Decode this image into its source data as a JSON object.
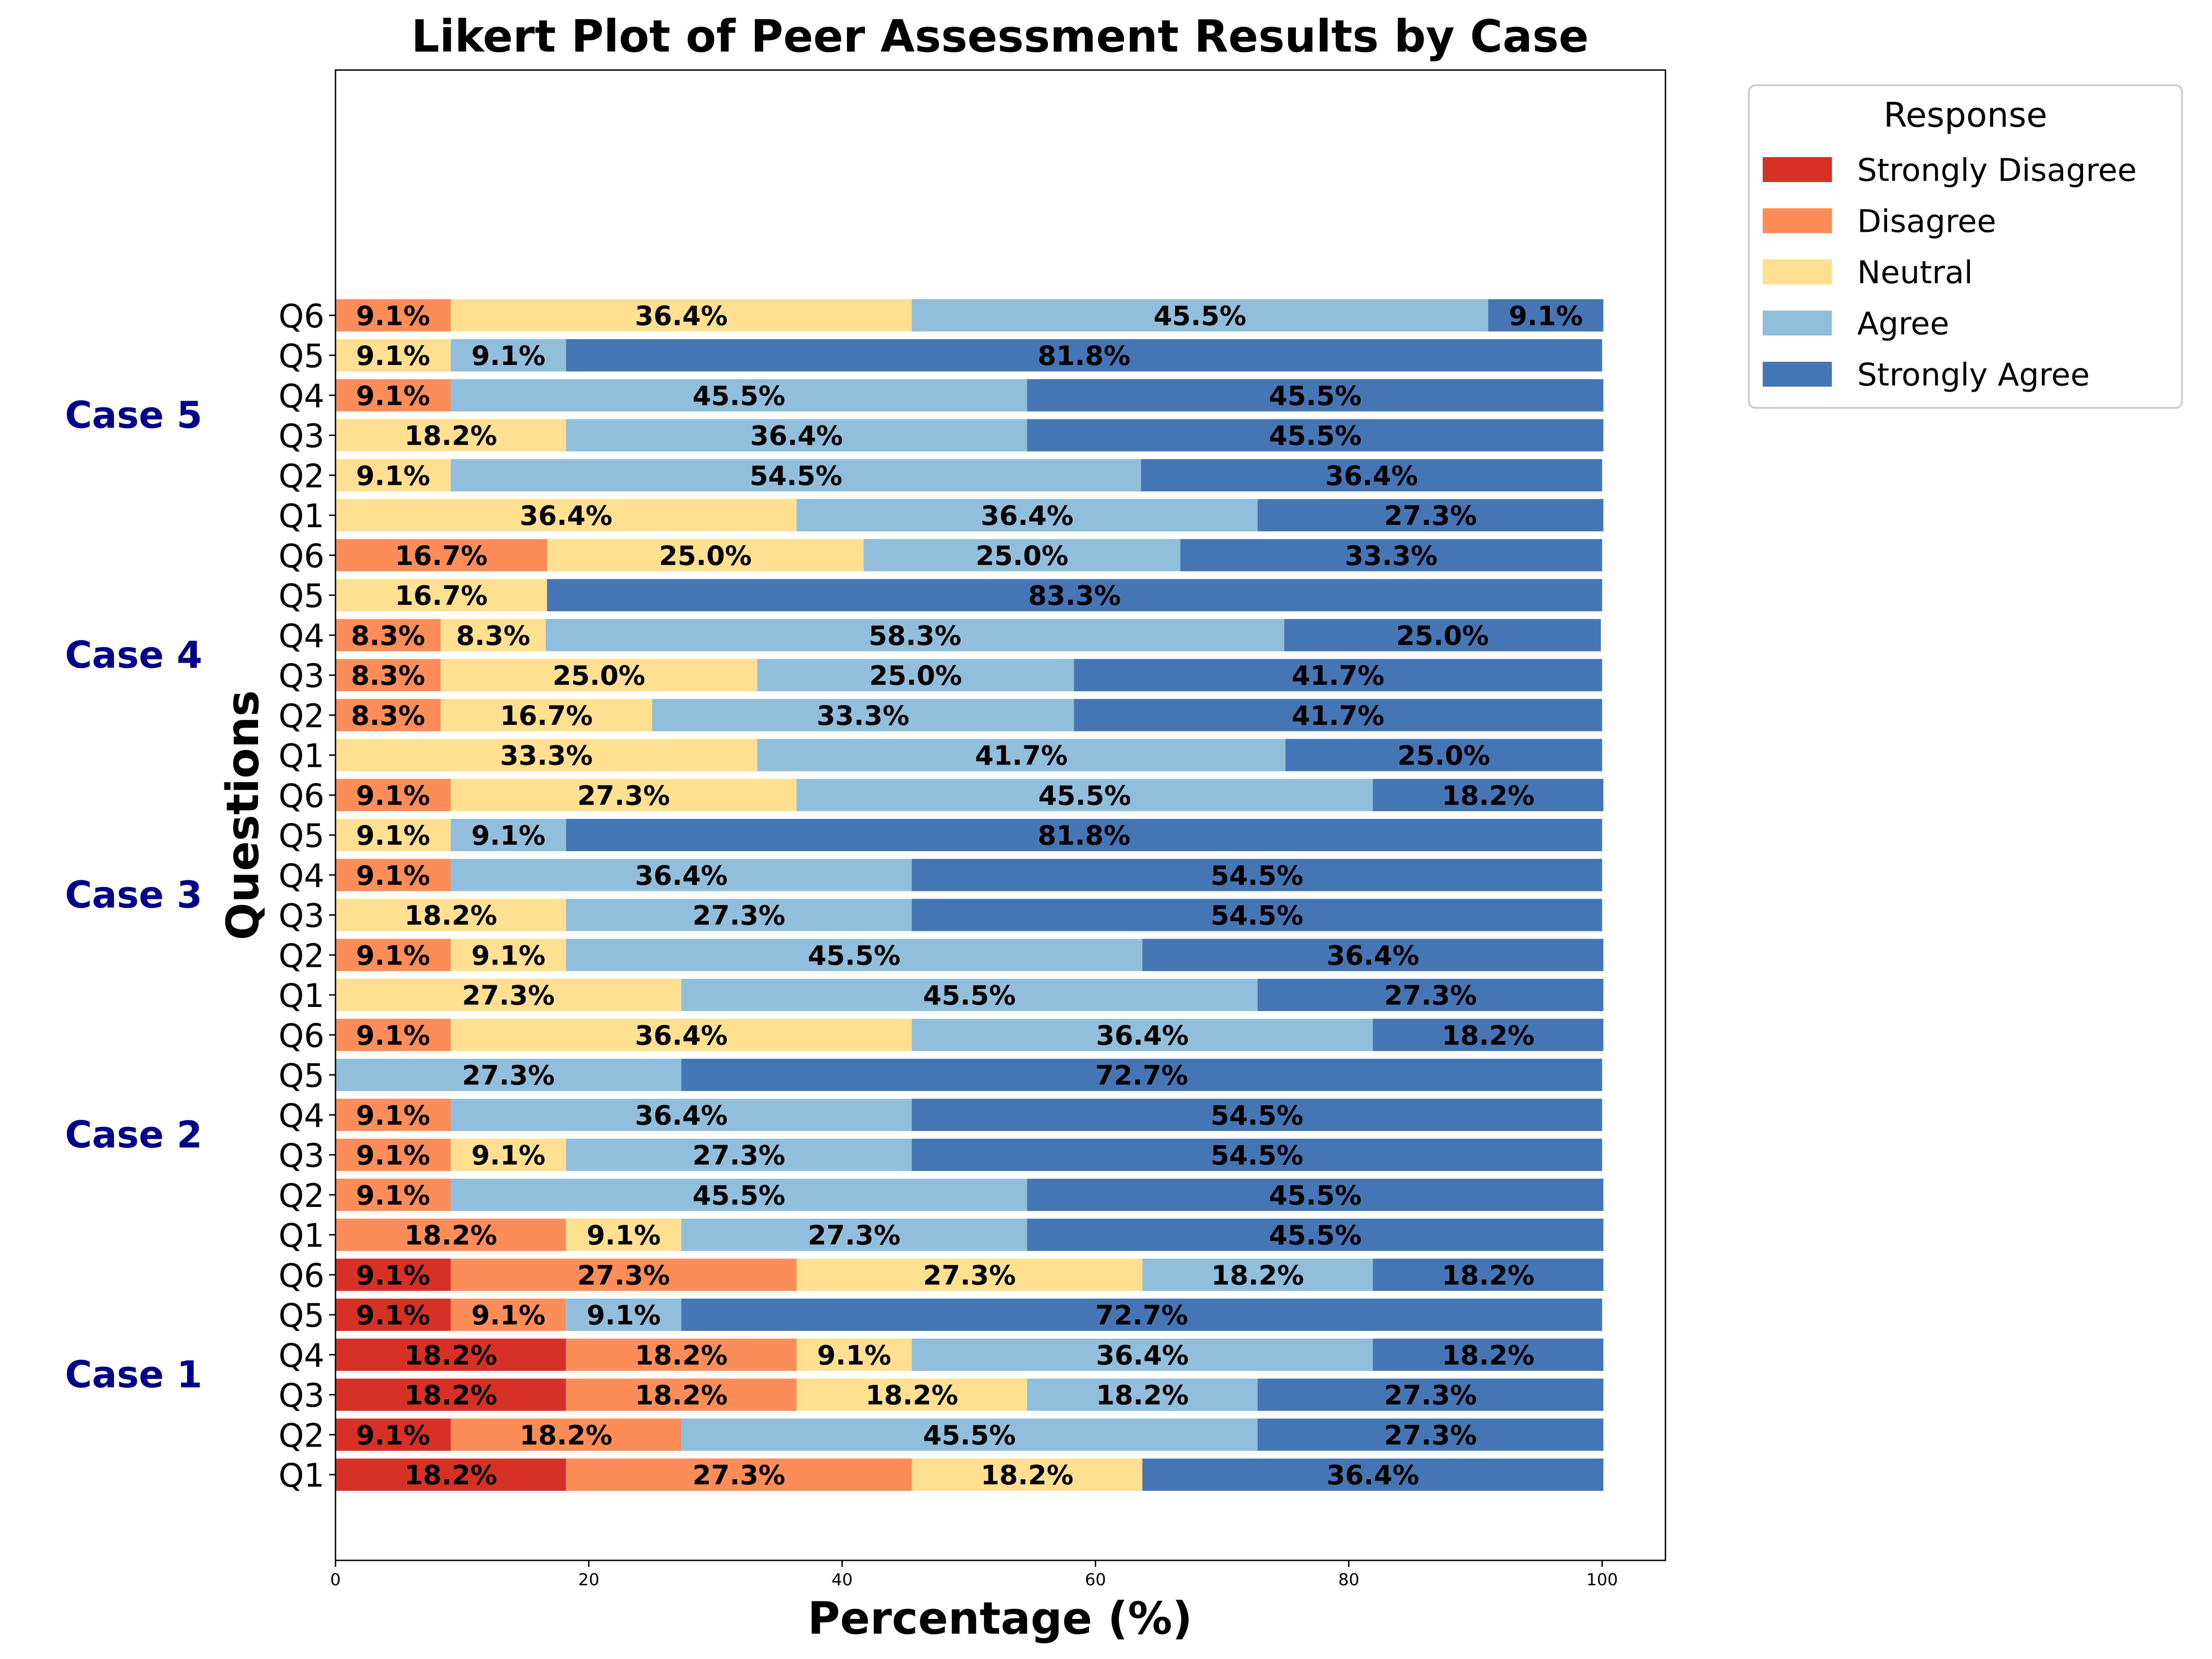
{
  "chart_data": {
    "type": "bar",
    "orientation": "horizontal",
    "stacked": true,
    "title": "Likert Plot of Peer Assessment Results by Case",
    "xlabel": "Percentage (%)",
    "ylabel": "Questions",
    "xlim": [
      0,
      105
    ],
    "xticks": [
      "0",
      "20",
      "40",
      "60",
      "80",
      "100"
    ],
    "grid": false,
    "legend": {
      "title": "Response",
      "placement": "outside-top-right",
      "entries": [
        "Strongly Disagree",
        "Disagree",
        "Neutral",
        "Agree",
        "Strongly Agree"
      ]
    },
    "colors": {
      "Strongly Disagree": "#d73027",
      "Disagree": "#fc8d59",
      "Neutral": "#fee090",
      "Agree": "#91bfdb",
      "Strongly Agree": "#4575b4"
    },
    "case_label_color": "#00008b",
    "groups": [
      {
        "name": "Case 1",
        "questions": [
          {
            "q": "Q1",
            "values": [
              18.2,
              27.3,
              18.2,
              0,
              36.4
            ]
          },
          {
            "q": "Q2",
            "values": [
              9.1,
              18.2,
              0,
              45.5,
              27.3
            ]
          },
          {
            "q": "Q3",
            "values": [
              18.2,
              18.2,
              18.2,
              18.2,
              27.3
            ]
          },
          {
            "q": "Q4",
            "values": [
              18.2,
              18.2,
              9.1,
              36.4,
              18.2
            ]
          },
          {
            "q": "Q5",
            "values": [
              9.1,
              9.1,
              0,
              9.1,
              72.7
            ]
          },
          {
            "q": "Q6",
            "values": [
              9.1,
              27.3,
              27.3,
              18.2,
              18.2
            ]
          }
        ]
      },
      {
        "name": "Case 2",
        "questions": [
          {
            "q": "Q1",
            "values": [
              0,
              18.2,
              9.1,
              27.3,
              45.5
            ]
          },
          {
            "q": "Q2",
            "values": [
              0,
              9.1,
              0,
              45.5,
              45.5
            ]
          },
          {
            "q": "Q3",
            "values": [
              0,
              9.1,
              9.1,
              27.3,
              54.5
            ]
          },
          {
            "q": "Q4",
            "values": [
              0,
              9.1,
              0,
              36.4,
              54.5
            ]
          },
          {
            "q": "Q5",
            "values": [
              0,
              0,
              0,
              27.3,
              72.7
            ]
          },
          {
            "q": "Q6",
            "values": [
              0,
              9.1,
              36.4,
              36.4,
              18.2
            ]
          }
        ]
      },
      {
        "name": "Case 3",
        "questions": [
          {
            "q": "Q1",
            "values": [
              0,
              0,
              27.3,
              45.5,
              27.3
            ]
          },
          {
            "q": "Q2",
            "values": [
              0,
              9.1,
              9.1,
              45.5,
              36.4
            ]
          },
          {
            "q": "Q3",
            "values": [
              0,
              0,
              18.2,
              27.3,
              54.5
            ]
          },
          {
            "q": "Q4",
            "values": [
              0,
              9.1,
              0,
              36.4,
              54.5
            ]
          },
          {
            "q": "Q5",
            "values": [
              0,
              0,
              9.1,
              9.1,
              81.8
            ]
          },
          {
            "q": "Q6",
            "values": [
              0,
              9.1,
              27.3,
              45.5,
              18.2
            ]
          }
        ]
      },
      {
        "name": "Case 4",
        "questions": [
          {
            "q": "Q1",
            "values": [
              0,
              0,
              33.3,
              41.7,
              25.0
            ]
          },
          {
            "q": "Q2",
            "values": [
              0,
              8.3,
              16.7,
              33.3,
              41.7
            ]
          },
          {
            "q": "Q3",
            "values": [
              0,
              8.3,
              25.0,
              25.0,
              41.7
            ]
          },
          {
            "q": "Q4",
            "values": [
              0,
              8.3,
              8.3,
              58.3,
              25.0
            ]
          },
          {
            "q": "Q5",
            "values": [
              0,
              0,
              16.7,
              0,
              83.3
            ]
          },
          {
            "q": "Q6",
            "values": [
              0,
              16.7,
              25.0,
              25.0,
              33.3
            ]
          }
        ]
      },
      {
        "name": "Case 5",
        "questions": [
          {
            "q": "Q1",
            "values": [
              0,
              0,
              36.4,
              36.4,
              27.3
            ]
          },
          {
            "q": "Q2",
            "values": [
              0,
              0,
              9.1,
              54.5,
              36.4
            ]
          },
          {
            "q": "Q3",
            "values": [
              0,
              0,
              18.2,
              36.4,
              45.5
            ]
          },
          {
            "q": "Q4",
            "values": [
              0,
              9.1,
              0,
              45.5,
              45.5
            ]
          },
          {
            "q": "Q5",
            "values": [
              0,
              0,
              9.1,
              9.1,
              81.8
            ]
          },
          {
            "q": "Q6",
            "values": [
              0,
              9.1,
              36.4,
              45.5,
              9.1
            ]
          }
        ]
      }
    ]
  }
}
